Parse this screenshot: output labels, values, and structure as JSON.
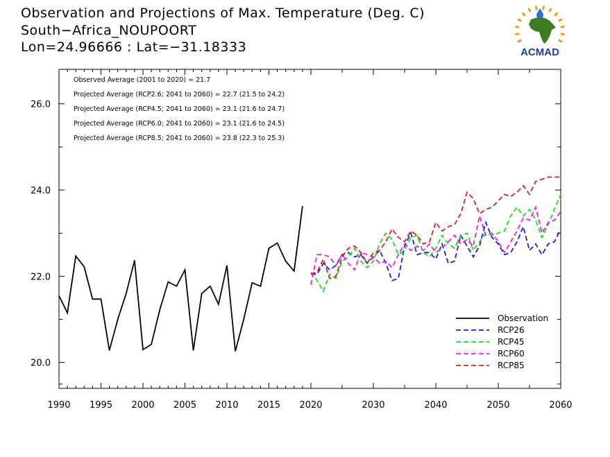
{
  "title_lines": [
    "Observation and Projections of Max. Temperature (Deg. C)",
    "South−Africa_NOUPOORT",
    "Lon=24.96666 : Lat=−31.18333"
  ],
  "logo": {
    "text": "ACMAD",
    "icon": "africa-map-logo",
    "colors": {
      "africa": "#3b7d1e",
      "rays": "#e3a21a",
      "text": "#1c3e9e",
      "drop": "#2a6fd1"
    }
  },
  "annotations": [
    "Observed Average (2001 to 2020) = 21.7",
    "Projected Average (RCP2.6; 2041 to 2060) = 22.7 (21.5 to 24.2)",
    "Projected Average (RCP4.5; 2041 to 2060) = 23.1 (21.6 to 24.7)",
    "Projected Average (RCP6.0; 2041 to 2060) = 23.1 (21.6 to 24.5)",
    "Projected Average (RCP8.5; 2041 to 2060) = 23.8 (22.3 to 25.3)"
  ],
  "chart_data": {
    "type": "line",
    "xlim": [
      1990,
      2060
    ],
    "ylim": [
      19.4,
      26.8
    ],
    "x_break": 2020,
    "xticks_left": [
      1990,
      1995,
      2000,
      2005,
      2010,
      2015,
      2020
    ],
    "xticks_right": [
      2030,
      2040,
      2050,
      2060
    ],
    "yticks": [
      20,
      22,
      24,
      26
    ],
    "ytick_labels": [
      "20.0",
      "22.0",
      "24.0",
      "26.0"
    ],
    "legend_position": "bottom-right",
    "series": [
      {
        "name": "Observation",
        "color": "#000000",
        "dashed": false,
        "x": [
          1990,
          1991,
          1992,
          1993,
          1994,
          1995,
          1996,
          1997,
          1998,
          1999,
          2000,
          2001,
          2002,
          2003,
          2004,
          2005,
          2006,
          2007,
          2008,
          2009,
          2010,
          2011,
          2012,
          2013,
          2014,
          2015,
          2016,
          2017,
          2018,
          2019
        ],
        "y": [
          21.55,
          21.15,
          22.47,
          22.22,
          21.47,
          21.47,
          20.28,
          21.0,
          21.6,
          22.37,
          20.3,
          20.42,
          21.22,
          21.87,
          21.77,
          22.15,
          20.28,
          21.6,
          21.77,
          21.35,
          22.25,
          20.26,
          21.0,
          21.85,
          21.77,
          22.65,
          22.77,
          22.35,
          22.12,
          23.63
        ]
      },
      {
        "name": "RCP26",
        "color": "#1a1adc",
        "dashed": true,
        "x": [
          2020,
          2021,
          2022,
          2023,
          2024,
          2025,
          2026,
          2027,
          2028,
          2029,
          2030,
          2031,
          2032,
          2033,
          2034,
          2035,
          2036,
          2037,
          2038,
          2039,
          2040,
          2041,
          2042,
          2043,
          2044,
          2045,
          2046,
          2047,
          2048,
          2049,
          2050,
          2051,
          2052,
          2053,
          2054,
          2055,
          2056,
          2057,
          2058,
          2059,
          2060
        ],
        "y": [
          22.05,
          22.05,
          22.3,
          22.15,
          22.25,
          22.5,
          22.55,
          22.45,
          22.5,
          22.3,
          22.45,
          22.6,
          22.3,
          21.9,
          21.95,
          22.7,
          23.0,
          22.5,
          22.55,
          22.55,
          22.4,
          22.75,
          22.3,
          22.35,
          22.95,
          22.7,
          22.45,
          22.7,
          23.25,
          22.9,
          22.75,
          22.5,
          22.55,
          22.8,
          23.15,
          22.6,
          22.75,
          22.5,
          22.75,
          22.8,
          23.1
        ]
      },
      {
        "name": "RCP45",
        "color": "#19dc19",
        "dashed": true,
        "x": [
          2020,
          2021,
          2022,
          2023,
          2024,
          2025,
          2026,
          2027,
          2028,
          2029,
          2030,
          2031,
          2032,
          2033,
          2034,
          2035,
          2036,
          2037,
          2038,
          2039,
          2040,
          2041,
          2042,
          2043,
          2044,
          2045,
          2046,
          2047,
          2048,
          2049,
          2050,
          2051,
          2052,
          2053,
          2054,
          2055,
          2056,
          2057,
          2058,
          2059,
          2060
        ],
        "y": [
          22.1,
          21.9,
          21.65,
          22.05,
          21.95,
          22.35,
          22.45,
          22.65,
          22.35,
          22.2,
          22.35,
          22.75,
          23.0,
          22.85,
          22.5,
          22.6,
          22.9,
          22.95,
          22.55,
          22.45,
          22.65,
          22.95,
          22.75,
          22.65,
          22.95,
          23.0,
          22.6,
          22.8,
          23.0,
          22.95,
          23.0,
          23.05,
          23.4,
          23.6,
          23.4,
          23.55,
          23.3,
          22.9,
          23.2,
          23.55,
          23.9
        ]
      },
      {
        "name": "RCP60",
        "color": "#ee1aee",
        "dashed": true,
        "x": [
          2020,
          2021,
          2022,
          2023,
          2024,
          2025,
          2026,
          2027,
          2028,
          2029,
          2030,
          2031,
          2032,
          2033,
          2034,
          2035,
          2036,
          2037,
          2038,
          2039,
          2040,
          2041,
          2042,
          2043,
          2044,
          2045,
          2046,
          2047,
          2048,
          2049,
          2050,
          2051,
          2052,
          2053,
          2054,
          2055,
          2056,
          2057,
          2058,
          2059,
          2060
        ],
        "y": [
          21.8,
          22.5,
          22.5,
          22.45,
          22.25,
          22.5,
          22.3,
          22.15,
          22.55,
          22.5,
          22.45,
          22.3,
          22.35,
          22.2,
          22.5,
          22.75,
          22.6,
          22.7,
          22.6,
          22.75,
          22.55,
          22.65,
          22.8,
          22.95,
          22.75,
          22.85,
          22.7,
          23.4,
          22.95,
          23.0,
          22.8,
          22.55,
          22.8,
          23.05,
          23.35,
          23.3,
          23.6,
          23.0,
          23.25,
          23.3,
          23.5
        ]
      },
      {
        "name": "RCP85",
        "color": "#e31a1a",
        "dashed": true,
        "x": [
          2020,
          2021,
          2022,
          2023,
          2024,
          2025,
          2026,
          2027,
          2028,
          2029,
          2030,
          2031,
          2032,
          2033,
          2034,
          2035,
          2036,
          2037,
          2038,
          2039,
          2040,
          2041,
          2042,
          2043,
          2044,
          2045,
          2046,
          2047,
          2048,
          2049,
          2050,
          2051,
          2052,
          2053,
          2054,
          2055,
          2056,
          2057,
          2058,
          2059,
          2060
        ],
        "y": [
          22.05,
          22.1,
          22.4,
          21.95,
          22.0,
          22.45,
          22.65,
          22.7,
          22.55,
          22.3,
          22.55,
          22.6,
          22.8,
          23.1,
          22.9,
          22.8,
          23.05,
          22.95,
          22.75,
          22.8,
          23.25,
          23.05,
          23.15,
          23.2,
          23.45,
          23.95,
          23.8,
          23.45,
          23.55,
          23.6,
          23.75,
          23.9,
          23.85,
          23.95,
          24.1,
          23.9,
          24.2,
          24.25,
          24.3,
          24.3,
          24.3
        ]
      }
    ]
  }
}
